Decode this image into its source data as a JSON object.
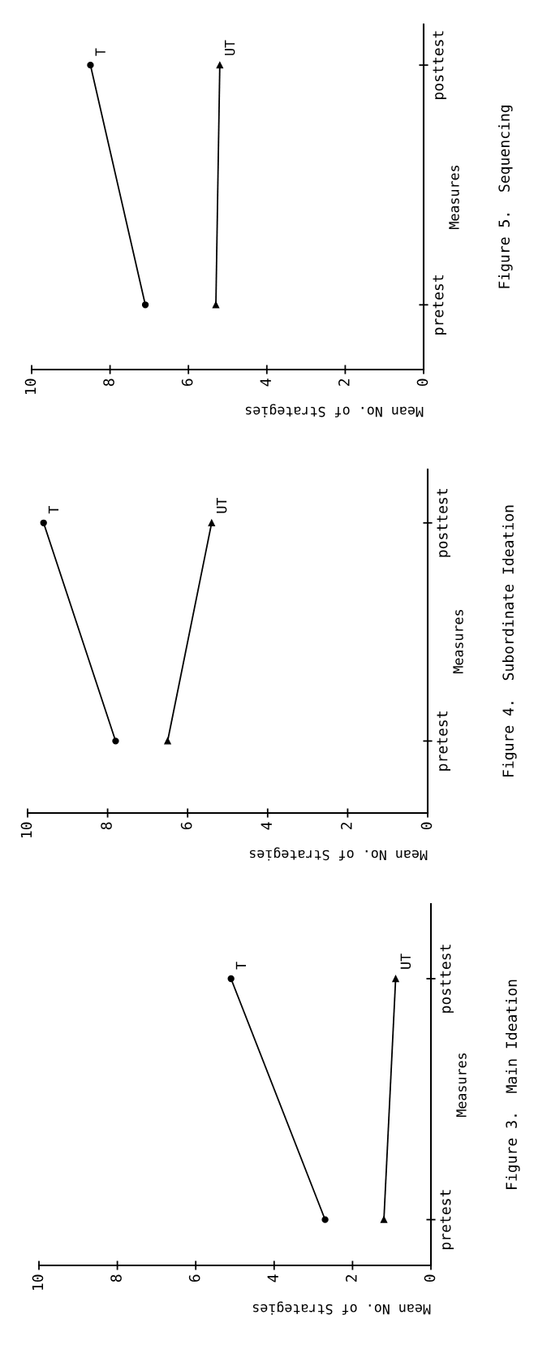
{
  "chart_data": [
    {
      "type": "line",
      "orientation": "horizontal",
      "annotations": [
        "Figure 3.  Main Ideation"
      ],
      "xlabel": "Mean No. of Strategies",
      "ylabel": "Measures",
      "categories": [
        "posttest",
        "pretest"
      ],
      "xlim": [
        10,
        0
      ],
      "xticks": [
        10,
        8,
        6,
        4,
        2,
        0
      ],
      "grid": false,
      "legend": false,
      "series": [
        {
          "name": "T",
          "color": "#000000",
          "marker": "circle",
          "values": [
            5.1,
            2.7
          ]
        },
        {
          "name": "UT",
          "color": "#000000",
          "marker": "triangle",
          "values": [
            0.9,
            1.2
          ]
        }
      ]
    },
    {
      "type": "line",
      "orientation": "horizontal",
      "annotations": [
        "Figure 4.  Subordinate Ideation"
      ],
      "xlabel": "Mean No. of Strategies",
      "ylabel": "Measures",
      "categories": [
        "posttest",
        "pretest"
      ],
      "xlim": [
        10,
        0
      ],
      "xticks": [
        10,
        8,
        6,
        4,
        2,
        0
      ],
      "grid": false,
      "legend": false,
      "series": [
        {
          "name": "T",
          "color": "#000000",
          "marker": "circle",
          "values": [
            9.6,
            7.8
          ]
        },
        {
          "name": "UT",
          "color": "#000000",
          "marker": "triangle",
          "values": [
            5.4,
            6.5
          ]
        }
      ]
    },
    {
      "type": "line",
      "orientation": "horizontal",
      "annotations": [
        "Figure 5.  Sequencing"
      ],
      "xlabel": "Mean No. of Strategies",
      "ylabel": "Measures",
      "categories": [
        "posttest",
        "pretest"
      ],
      "xlim": [
        10,
        0
      ],
      "xticks": [
        10,
        8,
        6,
        4,
        2,
        0
      ],
      "grid": false,
      "legend": false,
      "series": [
        {
          "name": "T",
          "color": "#000000",
          "marker": "circle",
          "values": [
            8.5,
            7.1
          ]
        },
        {
          "name": "UT",
          "color": "#000000",
          "marker": "triangle",
          "values": [
            5.2,
            5.3
          ]
        }
      ]
    }
  ]
}
